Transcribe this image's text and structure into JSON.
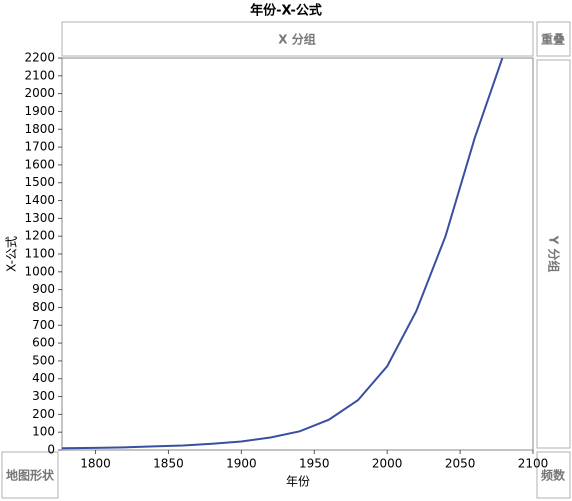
{
  "chart_data": {
    "type": "line",
    "title": "年份-X-公式",
    "x_label": "年份",
    "y_label": "X-公式",
    "x": [
      1777,
      1800,
      1820,
      1840,
      1860,
      1880,
      1900,
      1920,
      1940,
      1960,
      1980,
      2000,
      2020,
      2040,
      2060,
      2079
    ],
    "values": [
      10,
      12,
      15,
      20,
      25,
      35,
      48,
      70,
      105,
      170,
      280,
      470,
      780,
      1200,
      1750,
      2200
    ],
    "color": "#3a4fa0",
    "xlim": [
      1777,
      2100
    ],
    "ylim": [
      0,
      2200
    ],
    "xticks": [
      1800,
      1850,
      1900,
      1950,
      2000,
      2050,
      2100
    ],
    "yticks": [
      0,
      100,
      200,
      300,
      400,
      500,
      600,
      700,
      800,
      900,
      1000,
      1100,
      1200,
      1300,
      1400,
      1500,
      1600,
      1700,
      1800,
      1900,
      2000,
      2100,
      2200
    ]
  },
  "drop_zones": {
    "group_x": "X 分组",
    "overlay": "重叠",
    "group_y": "Y 分组",
    "map_shape": "地图形状",
    "frequency": "频数"
  }
}
